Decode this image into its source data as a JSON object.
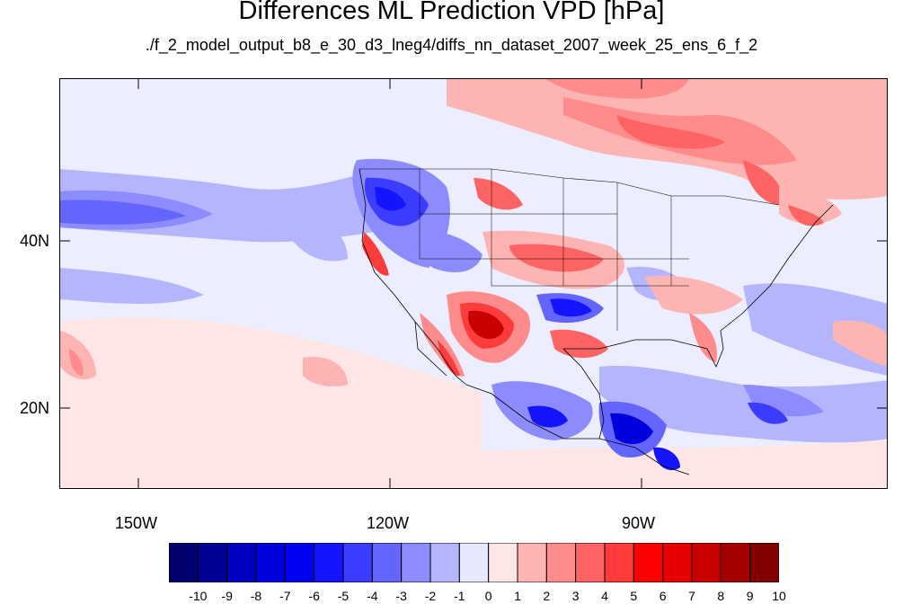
{
  "title": "Differences ML Prediction VPD [hPa]",
  "subtitle": "./f_2_model_output_b8_e_30_d3_lneg4/diffs_nn_dataset_2007_week_25_ens_6_f_2",
  "axes": {
    "lon_labels": [
      "150W",
      "120W",
      "90W"
    ],
    "lat_labels": [
      "40N",
      "20N"
    ]
  },
  "colorbar": {
    "labels": [
      "-10",
      "-9",
      "-8",
      "-7",
      "-6",
      "-5",
      "-4",
      "-3",
      "-2",
      "-1",
      "0",
      "1",
      "2",
      "3",
      "4",
      "5",
      "6",
      "7",
      "8",
      "9",
      "10"
    ],
    "colors": [
      "#00006e",
      "#000096",
      "#0000be",
      "#0000dc",
      "#0000f5",
      "#1414ff",
      "#3c3cff",
      "#6464ff",
      "#8c8cff",
      "#b4b4ff",
      "#e6e8ff",
      "#ffe6e6",
      "#ffb4b4",
      "#ff8c8c",
      "#ff6464",
      "#ff3c3c",
      "#ff0000",
      "#e60000",
      "#c80000",
      "#a50000",
      "#820000"
    ]
  },
  "colors": {
    "background": "#eceeff",
    "warm_accent": "#ff3c3c",
    "cool_accent": "#3c3cff"
  }
}
